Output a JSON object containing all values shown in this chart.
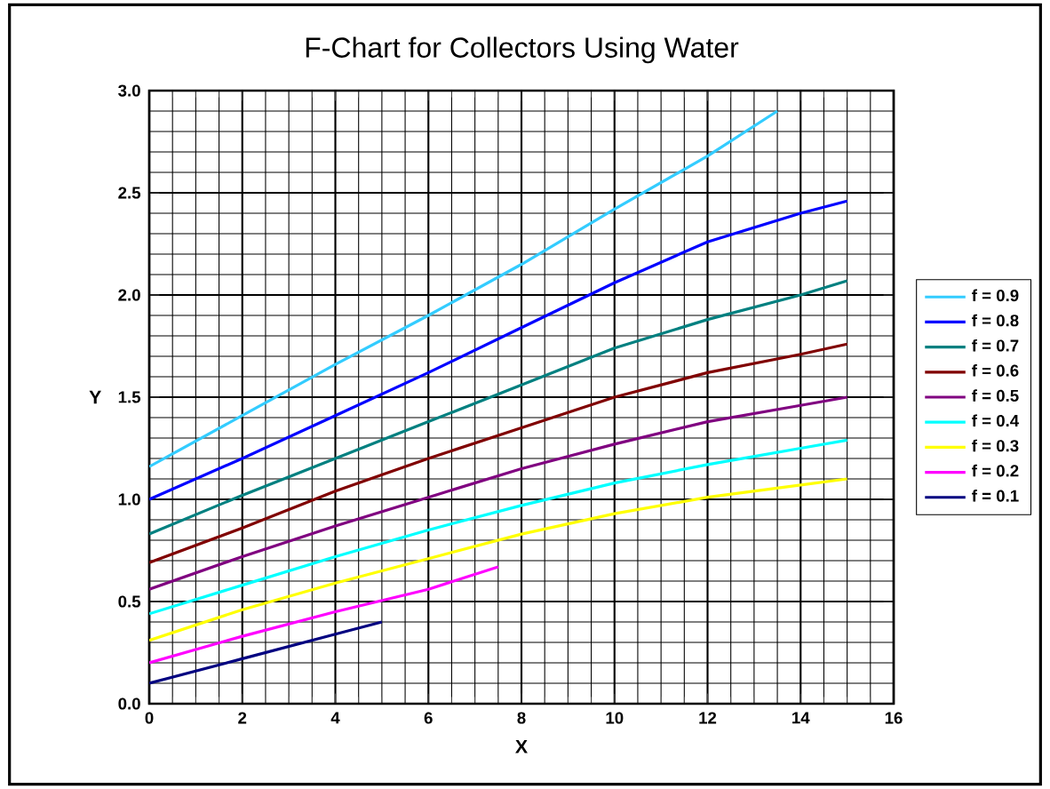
{
  "chart_data": {
    "type": "line",
    "title": "F-Chart for Collectors Using Water",
    "xlabel": "X",
    "ylabel": "Y",
    "xlim": [
      0,
      16
    ],
    "ylim": [
      0,
      3.0
    ],
    "xticks": [
      0,
      2,
      4,
      6,
      8,
      10,
      12,
      14,
      16
    ],
    "yticks": [
      {
        "value": 0,
        "label": "0.0"
      },
      0.5,
      {
        "value": 1,
        "label": "1.0"
      },
      1.5,
      {
        "value": 2,
        "label": "2.0"
      },
      2.5,
      {
        "value": 3,
        "label": "3.0"
      }
    ],
    "grid": true,
    "legend": "right",
    "line_style": "solid",
    "series": [
      {
        "name": "f = 0.9",
        "color": "#33ccff",
        "x": [
          0,
          2,
          4,
          6,
          8,
          10,
          12,
          13.5
        ],
        "values": [
          1.16,
          1.41,
          1.66,
          1.9,
          2.15,
          2.42,
          2.68,
          2.9
        ]
      },
      {
        "name": "f = 0.8",
        "color": "#0000ff",
        "x": [
          0,
          2,
          4,
          6,
          8,
          10,
          12,
          14,
          15
        ],
        "values": [
          1.0,
          1.2,
          1.41,
          1.62,
          1.84,
          2.06,
          2.26,
          2.4,
          2.46
        ]
      },
      {
        "name": "f = 0.7",
        "color": "#008080",
        "x": [
          0,
          2,
          4,
          6,
          8,
          10,
          12,
          14,
          15
        ],
        "values": [
          0.83,
          1.02,
          1.2,
          1.38,
          1.56,
          1.74,
          1.88,
          2.0,
          2.07
        ]
      },
      {
        "name": "f = 0.6",
        "color": "#800000",
        "x": [
          0,
          2,
          4,
          6,
          8,
          10,
          12,
          14,
          15
        ],
        "values": [
          0.69,
          0.86,
          1.04,
          1.2,
          1.35,
          1.5,
          1.62,
          1.71,
          1.76
        ]
      },
      {
        "name": "f = 0.5",
        "color": "#800080",
        "x": [
          0,
          2,
          4,
          6,
          8,
          10,
          12,
          14,
          15
        ],
        "values": [
          0.56,
          0.72,
          0.87,
          1.01,
          1.15,
          1.27,
          1.38,
          1.46,
          1.5
        ]
      },
      {
        "name": "f = 0.4",
        "color": "#00ffff",
        "x": [
          0,
          2,
          4,
          6,
          8,
          10,
          12,
          14,
          15
        ],
        "values": [
          0.44,
          0.58,
          0.72,
          0.85,
          0.97,
          1.08,
          1.17,
          1.25,
          1.29
        ]
      },
      {
        "name": "f = 0.3",
        "color": "#ffff00",
        "x": [
          0,
          2,
          4,
          6,
          8,
          10,
          12,
          14,
          15
        ],
        "values": [
          0.31,
          0.46,
          0.59,
          0.71,
          0.83,
          0.93,
          1.01,
          1.07,
          1.1
        ]
      },
      {
        "name": "f = 0.2",
        "color": "#ff00ff",
        "x": [
          0,
          2,
          4,
          6,
          7.5
        ],
        "values": [
          0.2,
          0.33,
          0.45,
          0.56,
          0.67
        ]
      },
      {
        "name": "f = 0.1",
        "color": "#000080",
        "x": [
          0,
          2,
          4,
          5
        ],
        "values": [
          0.1,
          0.22,
          0.34,
          0.4
        ]
      }
    ]
  }
}
